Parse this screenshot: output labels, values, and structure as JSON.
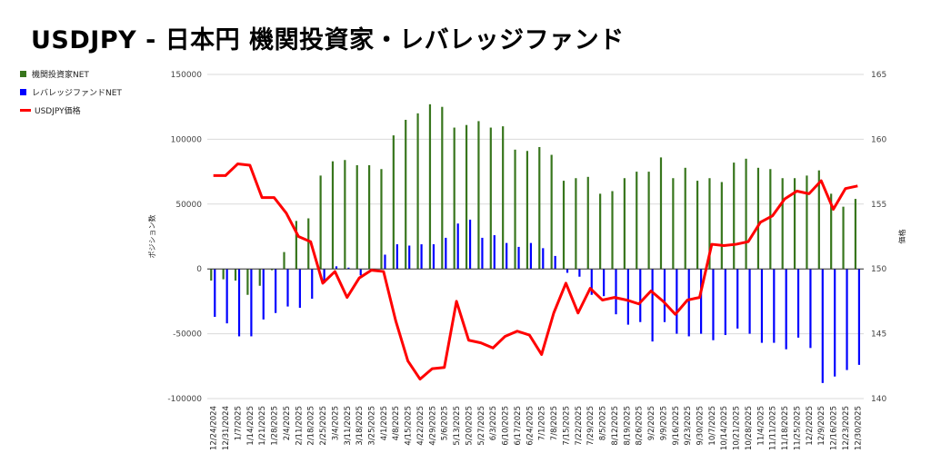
{
  "chart_data": {
    "type": "bar+line",
    "title": "USDJPY - 日本円 機関投資家・レバレッジファンド",
    "ylabel": "ポジション数",
    "y2label": "価格",
    "ylim": [
      -100000,
      150000
    ],
    "y2lim": [
      140,
      165
    ],
    "yticks": [
      "150000",
      "100000",
      "50000",
      "0",
      "-50000",
      "-100000"
    ],
    "y2ticks": [
      "165",
      "160",
      "155",
      "150",
      "145",
      "140"
    ],
    "legend_position": "left",
    "grid": true,
    "categories": [
      "12/24/2024",
      "12/31/2024",
      "1/7/2025",
      "1/14/2025",
      "1/21/2025",
      "1/28/2025",
      "2/4/2025",
      "2/11/2025",
      "2/18/2025",
      "2/25/2025",
      "3/4/2025",
      "3/11/2025",
      "3/18/2025",
      "3/25/2025",
      "4/1/2025",
      "4/8/2025",
      "4/15/2025",
      "4/22/2025",
      "4/29/2025",
      "5/6/2025",
      "5/13/2025",
      "5/20/2025",
      "5/27/2025",
      "6/3/2025",
      "6/10/2025",
      "6/17/2025",
      "6/24/2025",
      "7/1/2025",
      "7/8/2025",
      "7/15/2025",
      "7/22/2025",
      "7/29/2025",
      "8/5/2025",
      "8/12/2025",
      "8/19/2025",
      "8/26/2025",
      "9/2/2025",
      "9/9/2025",
      "9/16/2025",
      "9/23/2025",
      "9/30/2025",
      "10/7/2025",
      "10/14/2025",
      "10/21/2025",
      "10/28/2025",
      "11/4/2025",
      "11/11/2025",
      "11/18/2025",
      "11/25/2025",
      "12/2/2025",
      "12/9/2025",
      "12/16/2025",
      "12/23/2025",
      "12/30/2025"
    ],
    "series": [
      {
        "name": "機関投資家NET",
        "type": "bar",
        "color": "#38761d",
        "values": [
          -9000,
          -8000,
          -9000,
          -20000,
          -13000,
          -1000,
          13000,
          37000,
          39000,
          72000,
          83000,
          84000,
          80000,
          80000,
          77000,
          103000,
          115000,
          120000,
          127000,
          125000,
          109000,
          111000,
          114000,
          109000,
          110000,
          92000,
          91000,
          94000,
          88000,
          68000,
          70000,
          71000,
          58000,
          60000,
          70000,
          75000,
          75000,
          86000,
          70000,
          78000,
          68000,
          70000,
          67000,
          82000,
          85000,
          78000,
          77000,
          70000,
          70000,
          72000,
          76000,
          58000,
          48000,
          54000
        ]
      },
      {
        "name": "レバレッジファンドNET",
        "type": "bar",
        "color": "#0000ff",
        "values": [
          -37000,
          -42000,
          -52000,
          -52000,
          -39000,
          -34000,
          -29000,
          -30000,
          -23000,
          -11000,
          2000,
          1000,
          -5000,
          0,
          11000,
          19000,
          18000,
          19000,
          19000,
          24000,
          35000,
          38000,
          24000,
          26000,
          20000,
          17000,
          20000,
          16000,
          10000,
          -3000,
          -6000,
          -20000,
          -21000,
          -35000,
          -43000,
          -41000,
          -56000,
          -41000,
          -50000,
          -52000,
          -50000,
          -55000,
          -51000,
          -46000,
          -50000,
          -57000,
          -57000,
          -62000,
          -53000,
          -61000,
          -88000,
          -83000,
          -78000,
          -74000
        ]
      },
      {
        "name": "USDJPY価格",
        "type": "line",
        "axis": "right",
        "color": "#ff0000",
        "values": [
          157.2,
          157.2,
          158.1,
          158.0,
          155.5,
          155.5,
          154.3,
          152.5,
          152.1,
          148.9,
          149.8,
          147.8,
          149.3,
          149.9,
          149.8,
          146.0,
          142.9,
          141.5,
          142.3,
          142.4,
          147.5,
          144.5,
          144.3,
          143.9,
          144.8,
          145.2,
          144.9,
          143.4,
          146.6,
          148.9,
          146.6,
          148.5,
          147.6,
          147.8,
          147.6,
          147.3,
          148.3,
          147.5,
          146.5,
          147.6,
          147.8,
          151.9,
          151.8,
          151.9,
          152.1,
          153.6,
          154.1,
          155.4,
          156.0,
          155.8,
          156.8,
          154.6,
          156.2,
          156.4
        ]
      }
    ]
  }
}
